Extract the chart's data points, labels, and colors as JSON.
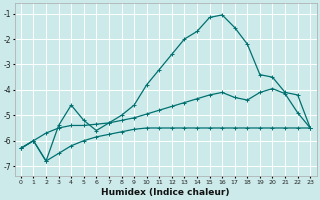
{
  "xlabel": "Humidex (Indice chaleur)",
  "bg_color": "#cceaea",
  "grid_color": "#ffffff",
  "line_color": "#007070",
  "xlim": [
    -0.5,
    23.5
  ],
  "ylim": [
    -7.4,
    -0.6
  ],
  "xticks": [
    0,
    1,
    2,
    3,
    4,
    5,
    6,
    7,
    8,
    9,
    10,
    11,
    12,
    13,
    14,
    15,
    16,
    17,
    18,
    19,
    20,
    21,
    22,
    23
  ],
  "yticks": [
    -7,
    -6,
    -5,
    -4,
    -3,
    -2,
    -1
  ],
  "line1_x": [
    0,
    1,
    2,
    3,
    4,
    5,
    6,
    7,
    8,
    9,
    10,
    11,
    12,
    13,
    14,
    15,
    16,
    17,
    18,
    19,
    20,
    21,
    22,
    23
  ],
  "line1_y": [
    -6.3,
    -6.0,
    -6.8,
    -5.4,
    -4.6,
    -5.2,
    -5.6,
    -5.3,
    -5.0,
    -4.6,
    -3.8,
    -3.2,
    -2.6,
    -2.0,
    -1.7,
    -1.15,
    -1.05,
    -1.55,
    -2.2,
    -3.4,
    -3.5,
    -4.1,
    -4.2,
    -5.5
  ],
  "line2_x": [
    0,
    1,
    2,
    3,
    4,
    5,
    6,
    7,
    8,
    9,
    10,
    11,
    12,
    13,
    14,
    15,
    16,
    17,
    18,
    19,
    20,
    21,
    22,
    23
  ],
  "line2_y": [
    -6.3,
    -6.0,
    -6.8,
    -6.5,
    -6.2,
    -6.0,
    -5.85,
    -5.75,
    -5.65,
    -5.55,
    -5.5,
    -5.5,
    -5.5,
    -5.5,
    -5.5,
    -5.5,
    -5.5,
    -5.5,
    -5.5,
    -5.5,
    -5.5,
    -5.5,
    -5.5,
    -5.5
  ],
  "line3_x": [
    0,
    1,
    2,
    3,
    4,
    5,
    6,
    7,
    8,
    9,
    10,
    11,
    12,
    13,
    14,
    15,
    16,
    17,
    18,
    19,
    20,
    21,
    22,
    23
  ],
  "line3_y": [
    -6.3,
    -6.0,
    -5.7,
    -5.5,
    -5.4,
    -5.4,
    -5.35,
    -5.3,
    -5.2,
    -5.1,
    -4.95,
    -4.8,
    -4.65,
    -4.5,
    -4.35,
    -4.2,
    -4.1,
    -4.3,
    -4.4,
    -4.1,
    -3.95,
    -4.15,
    -4.9,
    -5.5
  ]
}
